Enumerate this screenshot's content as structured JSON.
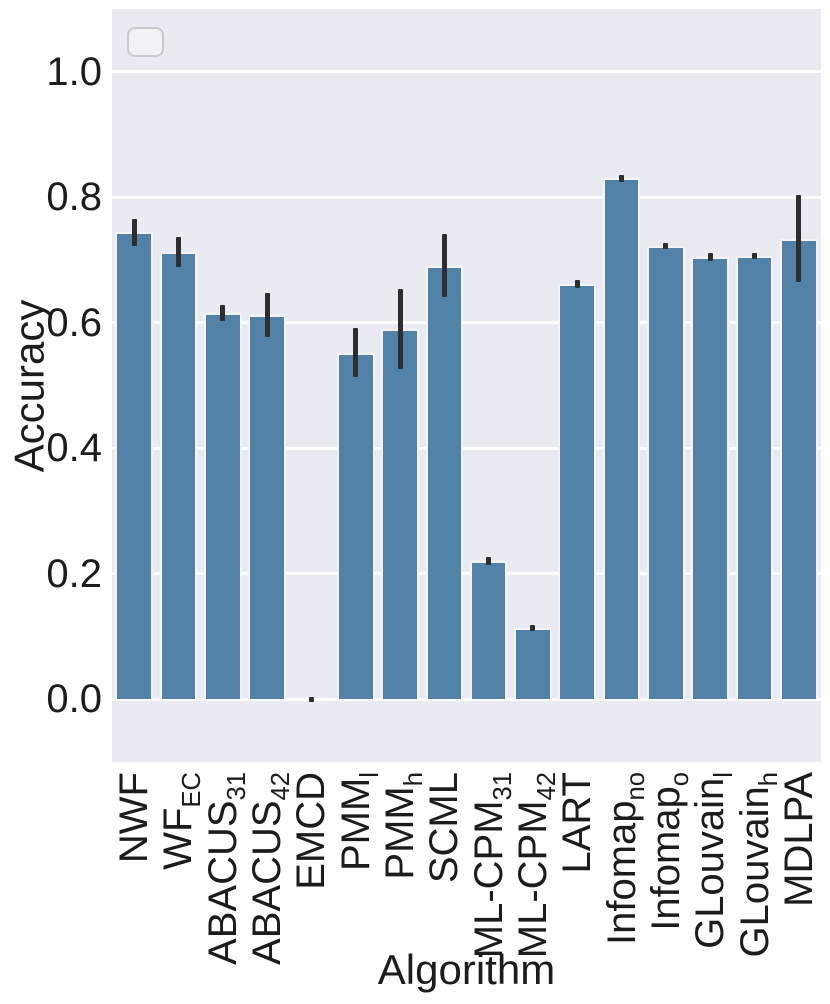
{
  "chart_data": {
    "type": "bar",
    "title": "",
    "xlabel": "Algorithm",
    "ylabel": "Accuracy",
    "ylim": [
      -0.1,
      1.1
    ],
    "yticks": [
      0.0,
      0.2,
      0.4,
      0.6,
      0.8,
      1.0
    ],
    "ytick_labels": [
      "0.0",
      "0.2",
      "0.4",
      "0.6",
      "0.8",
      "1.0"
    ],
    "grid": true,
    "legend": {
      "position": "upper-left",
      "entries": []
    },
    "categories": [
      {
        "main": "NWF",
        "sub": ""
      },
      {
        "main": "WF",
        "sub": "EC"
      },
      {
        "main": "ABACUS",
        "sub": "31"
      },
      {
        "main": "ABACUS",
        "sub": "42"
      },
      {
        "main": "EMCD",
        "sub": ""
      },
      {
        "main": "PMM",
        "sub": "l"
      },
      {
        "main": "PMM",
        "sub": "h"
      },
      {
        "main": "SCML",
        "sub": ""
      },
      {
        "main": "ML-CPM",
        "sub": "31"
      },
      {
        "main": "ML-CPM",
        "sub": "42"
      },
      {
        "main": "LART",
        "sub": ""
      },
      {
        "main": "Infomap",
        "sub": "no"
      },
      {
        "main": "Infomap",
        "sub": "o"
      },
      {
        "main": "GLouvain",
        "sub": "l"
      },
      {
        "main": "GLouvain",
        "sub": "h"
      },
      {
        "main": "MDLPA",
        "sub": ""
      }
    ],
    "values": [
      0.744,
      0.713,
      0.616,
      0.613,
      0.001,
      0.552,
      0.59,
      0.691,
      0.22,
      0.114,
      0.662,
      0.83,
      0.722,
      0.705,
      0.706,
      0.734
    ],
    "errors": [
      0.021,
      0.024,
      0.013,
      0.035,
      0.003,
      0.039,
      0.063,
      0.05,
      0.006,
      0.005,
      0.006,
      0.006,
      0.005,
      0.006,
      0.005,
      0.069
    ],
    "colors": {
      "bar": "#5282a8",
      "bar_edge": "#f5f5f8",
      "error_bar": "#2e2e2e",
      "plot_background": "#eaeaf2",
      "gridline": "#ffffff",
      "figure_background": "#ffffff",
      "legend_border": "#c9c9cf",
      "text": "#1c1c1c"
    }
  }
}
